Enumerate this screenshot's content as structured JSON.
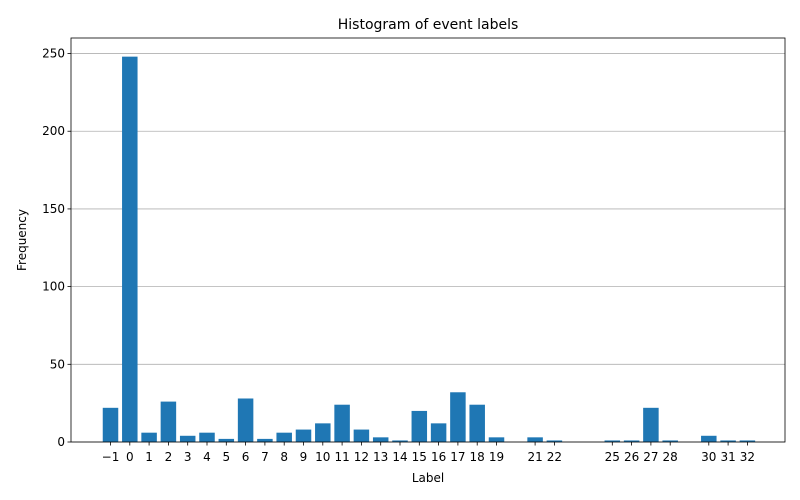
{
  "chart_data": {
    "type": "bar",
    "title": "Histogram of event labels",
    "xlabel": "Label",
    "ylabel": "Frequency",
    "categories": [
      -1,
      0,
      1,
      2,
      3,
      4,
      5,
      6,
      7,
      8,
      9,
      10,
      11,
      12,
      13,
      14,
      15,
      16,
      17,
      18,
      19,
      21,
      22,
      25,
      26,
      27,
      28,
      30,
      31,
      32
    ],
    "tick_labels": [
      "−1",
      "0",
      "1",
      "2",
      "3",
      "4",
      "5",
      "6",
      "7",
      "8",
      "9",
      "10",
      "11",
      "12",
      "13",
      "14",
      "15",
      "16",
      "17",
      "18",
      "19",
      "21",
      "22",
      "25",
      "26",
      "27",
      "28",
      "30",
      "31",
      "32"
    ],
    "values": [
      22,
      248,
      6,
      26,
      4,
      6,
      2,
      28,
      2,
      6,
      8,
      12,
      24,
      8,
      3,
      1,
      20,
      12,
      32,
      24,
      3,
      3,
      1,
      1,
      1,
      22,
      1,
      4,
      1,
      1
    ],
    "ylim": [
      0,
      260
    ],
    "yticks": [
      0,
      50,
      100,
      150,
      200,
      250
    ],
    "grid": "y",
    "bar_color": "#1f77b4"
  }
}
